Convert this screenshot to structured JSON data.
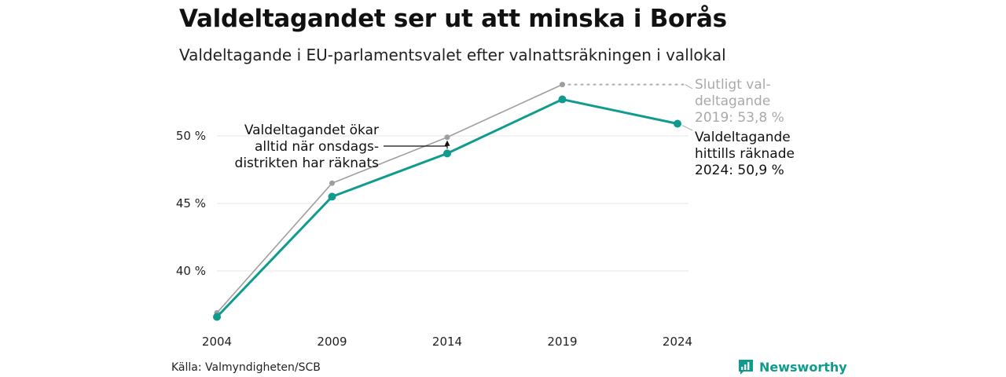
{
  "title": "Valdeltagandet ser ut att minska i Borås",
  "subtitle": "Valdeltagande i EU-parlamentsvalet efter valnattsräkningen i vallokal",
  "source": "Källa: Valmyndigheten/SCB",
  "brand": {
    "name": "Newsworthy",
    "icon": "newsworthy-logo-icon"
  },
  "colors": {
    "accent": "#0f9b8e",
    "final": "#9e9e9e",
    "grid": "#e4e4e4"
  },
  "chart_data": {
    "type": "line",
    "title": "Valdeltagandet ser ut att minska i Borås",
    "subtitle": "Valdeltagande i EU-parlamentsvalet efter valnattsräkningen i vallokal",
    "x": [
      "2004",
      "2009",
      "2014",
      "2019",
      "2024"
    ],
    "ylim": [
      35.5,
      55
    ],
    "yticks": [
      40,
      45,
      50
    ],
    "ytick_labels": [
      "40 %",
      "45 %",
      "50 %"
    ],
    "grid": true,
    "series": [
      {
        "values": [
          36.9,
          46.5,
          49.9,
          53.8,
          null
        ],
        "color": "#9e9e9e"
      },
      {
        "values": [
          36.6,
          45.5,
          48.7,
          52.7,
          50.9
        ],
        "color": "#0f9b8e"
      }
    ],
    "annotations": {
      "final": [
        "Slutligt val-",
        "deltagande",
        "2019: 53,8 %"
      ],
      "counted": [
        "Valdeltagande",
        "hittills räknade",
        "2024: 50,9 %"
      ],
      "note": [
        "Valdeltagandet ökar",
        "alltid när onsdags-",
        "distrikten har räknats"
      ]
    }
  }
}
